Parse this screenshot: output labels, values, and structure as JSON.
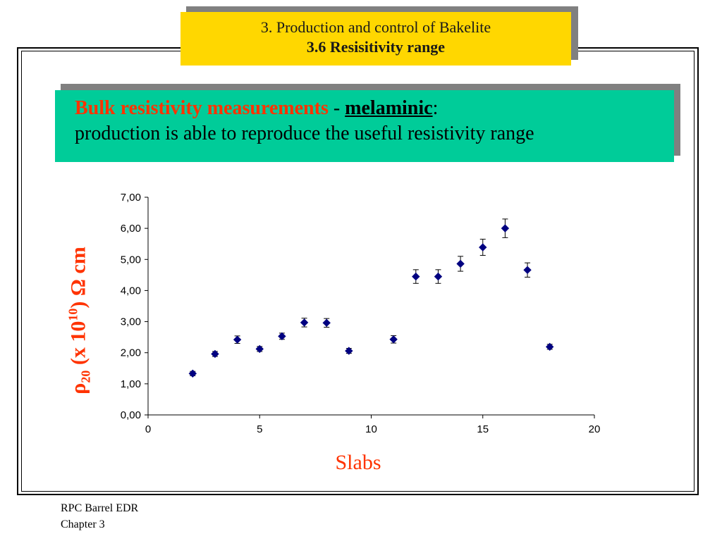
{
  "slide": {
    "title_line1": "3. Production and control of  Bakelite",
    "title_line2": "3.6 Resisitivity range",
    "banner_highlight": "Bulk resistivity measurements",
    "banner_dash": " - ",
    "banner_material": "melaminic",
    "banner_colon": ":",
    "banner_line2": "production is able to  reproduce the  useful resistivity range",
    "footer_line1": "RPC Barrel EDR",
    "footer_line2": "Chapter 3"
  },
  "colors": {
    "title_bg": "#ffd700",
    "banner_bg": "#00cc99",
    "accent": "#ff3300",
    "marker": "#000080"
  },
  "chart_data": {
    "type": "scatter",
    "xlabel": "Slabs",
    "ylabel_parts": {
      "rho": "ρ",
      "sub": "20",
      "mid": " (x 10",
      "sup": "10",
      "end": ")  Ω cm"
    },
    "xlim": [
      0,
      20
    ],
    "ylim": [
      0,
      7
    ],
    "xticks": [
      0,
      5,
      10,
      15,
      20
    ],
    "xtick_labels": [
      "0",
      "5",
      "10",
      "15",
      "20"
    ],
    "yticks": [
      0,
      1,
      2,
      3,
      4,
      5,
      6,
      7
    ],
    "ytick_labels": [
      "0,00",
      "1,00",
      "2,00",
      "3,00",
      "4,00",
      "5,00",
      "6,00",
      "7,00"
    ],
    "grid": false,
    "marker": "diamond",
    "points": [
      {
        "x": 2,
        "y": 1.33,
        "err": 0.07
      },
      {
        "x": 3,
        "y": 1.96,
        "err": 0.08
      },
      {
        "x": 4,
        "y": 2.42,
        "err": 0.12
      },
      {
        "x": 5,
        "y": 2.12,
        "err": 0.08
      },
      {
        "x": 6,
        "y": 2.53,
        "err": 0.1
      },
      {
        "x": 7,
        "y": 2.97,
        "err": 0.14
      },
      {
        "x": 8,
        "y": 2.96,
        "err": 0.14
      },
      {
        "x": 9,
        "y": 2.06,
        "err": 0.08
      },
      {
        "x": 11,
        "y": 2.43,
        "err": 0.12
      },
      {
        "x": 12,
        "y": 4.45,
        "err": 0.22
      },
      {
        "x": 13,
        "y": 4.45,
        "err": 0.22
      },
      {
        "x": 14,
        "y": 4.86,
        "err": 0.24
      },
      {
        "x": 15,
        "y": 5.39,
        "err": 0.26
      },
      {
        "x": 16,
        "y": 6.0,
        "err": 0.3
      },
      {
        "x": 17,
        "y": 4.66,
        "err": 0.23
      },
      {
        "x": 18,
        "y": 2.19,
        "err": 0.08
      }
    ]
  }
}
